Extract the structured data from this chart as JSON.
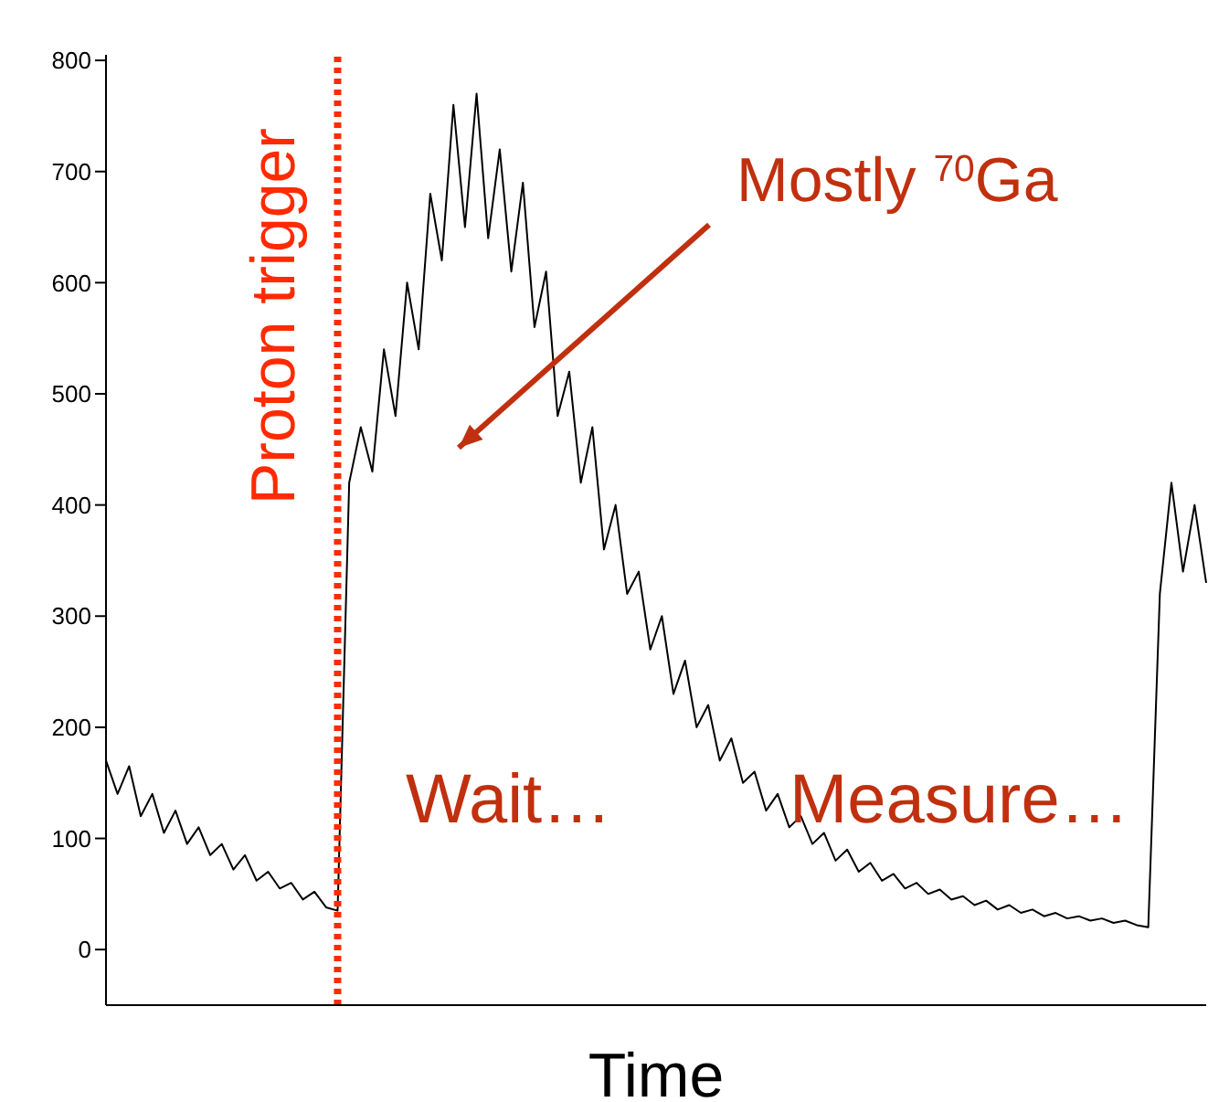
{
  "chart_data": {
    "type": "line",
    "xlabel": "Time",
    "tick_labels": "y",
    "marker": "none",
    "line_style": "solid",
    "categories": [
      null,
      null,
      null,
      null,
      null,
      null,
      null,
      null,
      null,
      null,
      null,
      null,
      null,
      null,
      null,
      null,
      null,
      null,
      null,
      null,
      null,
      null,
      null,
      null,
      null,
      null,
      null,
      null,
      null,
      null,
      null,
      null,
      null,
      null,
      null,
      null,
      null,
      null,
      null,
      null,
      null,
      null,
      null,
      null,
      null,
      null,
      null,
      null,
      null,
      null,
      null,
      null,
      null,
      null,
      null,
      null,
      null,
      null,
      null,
      null,
      null,
      null,
      null,
      null,
      null,
      null,
      null,
      null,
      null,
      null,
      null,
      null,
      null,
      null,
      null,
      null,
      null,
      null,
      null,
      null,
      null,
      null,
      null,
      null,
      null,
      null,
      null,
      null,
      null,
      null,
      null,
      null,
      null,
      null,
      null,
      null
    ],
    "ylim": [
      -50,
      805
    ],
    "yticks": [
      0,
      100,
      200,
      300,
      400,
      500,
      600,
      700,
      800
    ],
    "series": [
      {
        "color": "#000000",
        "values": [
          170,
          140,
          165,
          120,
          140,
          105,
          125,
          95,
          110,
          85,
          95,
          72,
          85,
          62,
          70,
          55,
          60,
          45,
          52,
          38,
          35,
          420,
          470,
          430,
          540,
          480,
          600,
          540,
          680,
          620,
          760,
          650,
          770,
          640,
          720,
          610,
          690,
          560,
          610,
          480,
          520,
          420,
          470,
          360,
          400,
          320,
          340,
          270,
          300,
          230,
          260,
          200,
          220,
          170,
          190,
          150,
          160,
          125,
          140,
          110,
          120,
          95,
          105,
          80,
          90,
          70,
          78,
          62,
          68,
          55,
          60,
          50,
          54,
          45,
          48,
          40,
          44,
          36,
          40,
          33,
          36,
          30,
          33,
          28,
          30,
          26,
          28,
          24,
          26,
          22,
          20,
          320,
          420,
          340,
          400,
          330
        ]
      }
    ],
    "annotations": [
      "Proton trigger",
      "Mostly $^{70}$Ga",
      "Wait…",
      "Measure…"
    ]
  }
}
